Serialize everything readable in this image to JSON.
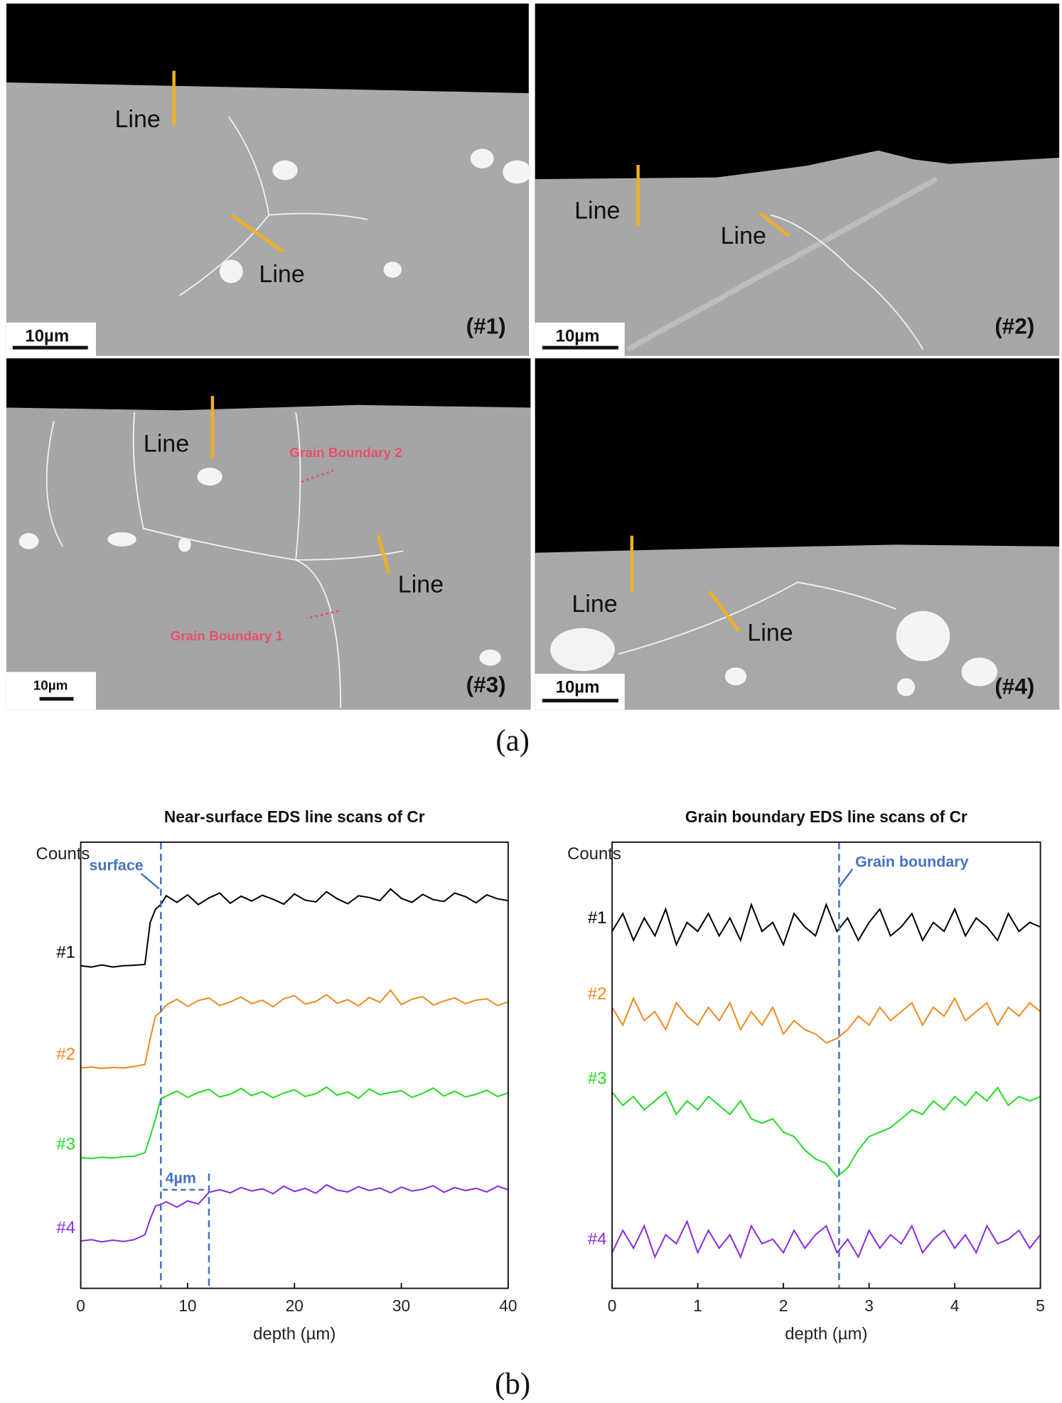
{
  "panel_a": {
    "panels": [
      {
        "tag": "(#1)",
        "scale": "10µm",
        "lines": [
          "Line",
          "Line"
        ]
      },
      {
        "tag": "(#2)",
        "scale": "10µm",
        "lines": [
          "Line",
          "Line"
        ]
      },
      {
        "tag": "(#3)",
        "scale": "10µm",
        "lines": [
          "Line",
          "Line"
        ]
      },
      {
        "tag": "(#4)",
        "scale": "10µm",
        "lines": [
          "Line",
          "Line"
        ]
      }
    ],
    "grain_boundary_labels": [
      "Grain Boundary 2",
      "Grain Boundary 1"
    ]
  },
  "captions": {
    "a": "(a)",
    "b": "(b)"
  },
  "chart_data": [
    {
      "type": "line",
      "title": "Near-surface EDS line scans of Cr",
      "x_label": "depth (µm)",
      "y_label": "Counts",
      "xlim": [
        0,
        40
      ],
      "xticks": [
        0,
        10,
        20,
        30,
        40
      ],
      "ylim": [
        0,
        100
      ],
      "x": [
        0,
        1,
        2,
        3,
        4,
        5,
        6,
        6.5,
        7,
        7.5,
        8,
        9,
        10,
        11,
        12,
        13,
        14,
        15,
        16,
        17,
        18,
        19,
        20,
        21,
        22,
        23,
        24,
        25,
        26,
        27,
        28,
        29,
        30,
        31,
        32,
        33,
        34,
        35,
        36,
        37,
        38,
        39,
        40
      ],
      "series": [
        {
          "name": "#1",
          "color": "#000000",
          "values": [
            72.3,
            72,
            72.5,
            72,
            72.3,
            72.4,
            72.6,
            82,
            85,
            86,
            88,
            86.5,
            88.2,
            86,
            87.5,
            88.6,
            86.3,
            87.9,
            86.8,
            88.1,
            87.2,
            86.1,
            88.4,
            87,
            86.6,
            88.9,
            87.3,
            86.2,
            88,
            87.6,
            86.9,
            89.5,
            87.4,
            86.5,
            88.3,
            87.1,
            86.7,
            88.6,
            87.8,
            86.4,
            88.2,
            87.3,
            86.9
          ]
        },
        {
          "name": "#2",
          "color": "#f08a1c",
          "values": [
            49.4,
            49.6,
            49.3,
            49.5,
            49.4,
            49.7,
            50.2,
            56,
            61,
            62,
            63.5,
            64.8,
            63.2,
            64.5,
            65.1,
            63.4,
            64.2,
            65.3,
            63.8,
            64.6,
            63.1,
            64.9,
            65.6,
            63.7,
            64.3,
            65.8,
            63.9,
            64.7,
            63.3,
            65.2,
            64.1,
            66.8,
            63.6,
            64.8,
            65.4,
            63.5,
            64.4,
            65.1,
            63.8,
            64.6,
            64.9,
            63.4,
            64.2
          ]
        },
        {
          "name": "#3",
          "color": "#22dd22",
          "values": [
            29.3,
            29.1,
            29.4,
            29.2,
            29.5,
            29.6,
            30.4,
            34,
            38,
            42.5,
            43.1,
            44.2,
            42.8,
            43.9,
            44.6,
            42.9,
            43.5,
            44.8,
            43.2,
            44.1,
            42.7,
            43.8,
            44.5,
            43.0,
            43.6,
            45.1,
            43.3,
            44.0,
            42.6,
            44.7,
            43.4,
            43.9,
            44.3,
            42.8,
            43.7,
            44.9,
            43.1,
            44.2,
            42.9,
            43.5,
            44.4,
            43.0,
            43.8
          ]
        },
        {
          "name": "#4",
          "color": "#8a2be2",
          "values": [
            10.6,
            10.9,
            10.4,
            10.8,
            10.5,
            10.9,
            12,
            15.5,
            18.5,
            18.8,
            19.4,
            18.2,
            19.6,
            18.9,
            21.5,
            22.1,
            21.4,
            22.6,
            21.8,
            22.3,
            21.2,
            22.9,
            21.7,
            22.4,
            21.3,
            23.2,
            22.0,
            21.6,
            22.8,
            21.9,
            22.5,
            21.4,
            22.7,
            21.8,
            22.2,
            23.0,
            21.5,
            22.6,
            21.9,
            22.4,
            21.6,
            22.9,
            22.1
          ]
        }
      ],
      "vlines": [
        7.5,
        12
      ],
      "annotations": [
        "surface",
        "4µm"
      ]
    },
    {
      "type": "line",
      "title": "Grain boundary EDS line scans of Cr",
      "x_label": "depth (µm)",
      "y_label": "Counts",
      "xlim": [
        0,
        5
      ],
      "xticks": [
        0,
        1,
        2,
        3,
        4,
        5
      ],
      "ylim": [
        0,
        100
      ],
      "x": [
        0,
        0.125,
        0.25,
        0.375,
        0.5,
        0.625,
        0.75,
        0.875,
        1,
        1.125,
        1.25,
        1.375,
        1.5,
        1.625,
        1.75,
        1.875,
        2,
        2.125,
        2.25,
        2.375,
        2.5,
        2.625,
        2.75,
        2.875,
        3,
        3.125,
        3.25,
        3.375,
        3.5,
        3.625,
        3.75,
        3.875,
        4,
        4.125,
        4.25,
        4.375,
        4.5,
        4.625,
        4.75,
        4.875,
        5
      ],
      "series": [
        {
          "name": "#1",
          "color": "#000000",
          "values": [
            80,
            84,
            78,
            83,
            79,
            85,
            77,
            82,
            80,
            84,
            79,
            83,
            78,
            86,
            80,
            82,
            77,
            84,
            81,
            79,
            86,
            80,
            83,
            78,
            82,
            85,
            79,
            81,
            84,
            78,
            82,
            80,
            85,
            79,
            83,
            81,
            78,
            84,
            80,
            82,
            81
          ]
        },
        {
          "name": "#2",
          "color": "#f08a1c",
          "values": [
            63,
            59,
            65,
            60,
            62,
            58,
            64,
            61,
            59,
            63,
            60,
            64,
            58,
            62,
            59,
            63,
            57,
            60,
            58,
            57,
            55,
            56,
            58,
            61,
            59,
            63,
            60,
            62,
            64,
            59,
            63,
            61,
            65,
            60,
            62,
            64,
            59,
            63,
            61,
            64,
            62
          ]
        },
        {
          "name": "#3",
          "color": "#22dd22",
          "values": [
            44,
            41,
            43,
            40,
            42,
            44,
            39,
            42,
            40,
            43,
            41,
            39,
            42,
            38,
            37,
            38,
            35,
            34,
            31,
            29,
            28,
            25,
            27,
            31,
            34,
            35,
            36,
            38,
            40,
            39,
            42,
            40,
            43,
            41,
            44,
            42,
            45,
            41,
            43,
            42,
            43
          ]
        },
        {
          "name": "#4",
          "color": "#8a2be2",
          "values": [
            8,
            13,
            9,
            14,
            7,
            12,
            10,
            15,
            8,
            13,
            9,
            12,
            7,
            14,
            10,
            11,
            8,
            13,
            9,
            12,
            14,
            8,
            11,
            7,
            13,
            9,
            12,
            10,
            14,
            8,
            11,
            13,
            9,
            12,
            8,
            14,
            10,
            11,
            13,
            9,
            12
          ]
        }
      ],
      "vlines": [
        2.65
      ],
      "annotations": [
        "Grain boundary"
      ]
    }
  ]
}
